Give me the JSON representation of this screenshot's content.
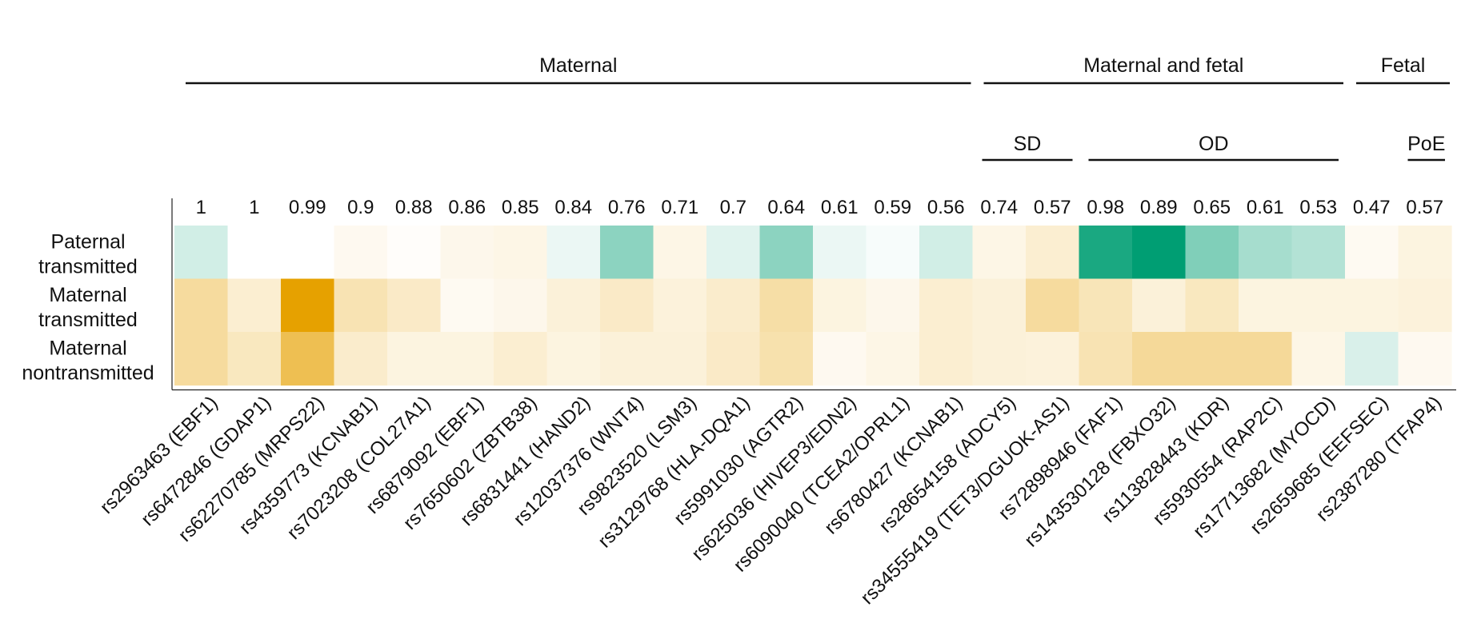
{
  "chart_data": {
    "type": "heatmap",
    "title": "",
    "groups": [
      {
        "label": "Maternal",
        "start": 0,
        "end": 14
      },
      {
        "label": "Maternal and fetal",
        "start": 15,
        "end": 21
      },
      {
        "label": "Fetal",
        "start": 22,
        "end": 23
      }
    ],
    "subgroups": [
      {
        "label": "SD",
        "start": 15,
        "end": 16
      },
      {
        "label": "OD",
        "start": 17,
        "end": 21
      },
      {
        "label": "PoE",
        "start": 23,
        "end": 23
      }
    ],
    "rows": [
      {
        "line1": "Paternal",
        "line2": "transmitted"
      },
      {
        "line1": "Maternal",
        "line2": "transmitted"
      },
      {
        "line1": "Maternal",
        "line2": "nontransmitted"
      }
    ],
    "columns": [
      "rs2963463 (EBF1)",
      "rs6472846 (GDAP1)",
      "rs62270785 (MRPS22)",
      "rs4359773 (KCNAB1)",
      "rs7023208 (COL27A1)",
      "rs6879092 (EBF1)",
      "rs7650602 (ZBTB38)",
      "rs6831441 (HAND2)",
      "rs12037376 (WNT4)",
      "rs9823520 (LSM3)",
      "rs3129768 (HLA-DQA1)",
      "rs5991030 (AGTR2)",
      "rs625036 (HIVEP3/EDN2)",
      "rs6090040 (TCEA2/OPRL1)",
      "rs6780427 (KCNAB1)",
      "rs28654158 (ADCY5)",
      "rs34555419 (TET3/DGUOK-AS1)",
      "rs72898946 (FAF1)",
      "rs143530128 (FBXO32)",
      "rs113828443 (KDR)",
      "rs5930554 (RAP2C)",
      "rs17713682 (MYOCD)",
      "rs2659685 (EEFSEC)",
      "rs2387280 (TFAP4)"
    ],
    "top_values": [
      "1",
      "1",
      "0.99",
      "0.9",
      "0.88",
      "0.86",
      "0.85",
      "0.84",
      "0.76",
      "0.71",
      "0.7",
      "0.64",
      "0.61",
      "0.59",
      "0.56",
      "0.74",
      "0.57",
      "0.98",
      "0.89",
      "0.65",
      "0.61",
      "0.53",
      "0.47",
      "0.57"
    ],
    "cell_values": [
      [
        0.18,
        0.0,
        0.0,
        -0.06,
        -0.02,
        -0.08,
        -0.1,
        0.08,
        0.45,
        -0.1,
        0.12,
        0.45,
        0.08,
        0.03,
        0.18,
        -0.1,
        -0.18,
        0.9,
        1.0,
        0.5,
        0.35,
        0.3,
        -0.05,
        -0.12
      ],
      [
        -0.38,
        -0.18,
        -1.0,
        -0.3,
        -0.22,
        -0.05,
        -0.08,
        -0.15,
        -0.22,
        -0.14,
        -0.2,
        -0.35,
        -0.12,
        -0.08,
        -0.18,
        -0.15,
        -0.38,
        -0.28,
        -0.15,
        -0.25,
        -0.12,
        -0.12,
        -0.12,
        -0.14
      ],
      [
        -0.38,
        -0.25,
        -0.68,
        -0.2,
        -0.12,
        -0.12,
        -0.18,
        -0.12,
        -0.15,
        -0.15,
        -0.22,
        -0.32,
        -0.06,
        -0.1,
        -0.18,
        -0.15,
        -0.14,
        -0.3,
        -0.4,
        -0.4,
        -0.4,
        -0.1,
        0.15,
        -0.06
      ]
    ],
    "color_scale": {
      "negative": "#e6a100",
      "positive": "#009e73",
      "neutral": "#ffffff",
      "range": [
        -1,
        1
      ]
    }
  }
}
